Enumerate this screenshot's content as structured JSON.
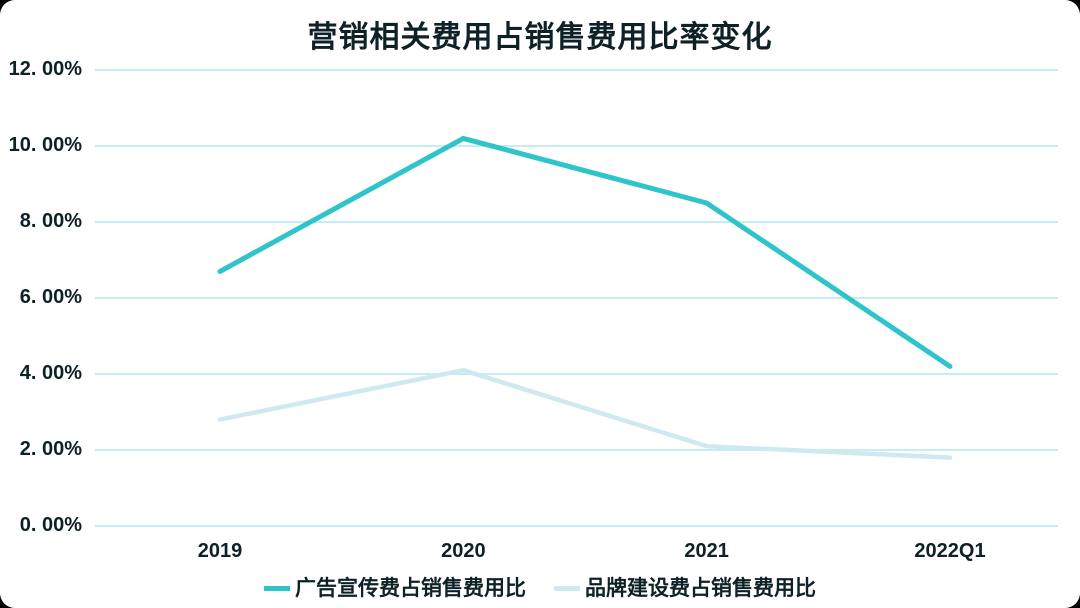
{
  "colors": {
    "background": "#ffffff",
    "outer_corners": "#000000",
    "text_dark": "#0d2127",
    "grid": "#c6edf2",
    "series_teal": "#2ec4c9",
    "series_light": "#cfe9f1"
  },
  "chart_data": {
    "type": "line",
    "title": "营销相关费用占销售费用比率变化",
    "categories": [
      "2019",
      "2020",
      "2021",
      "2022Q1"
    ],
    "series": [
      {
        "name": "广告宣传费占销售费用比",
        "color": "#2ec4c9",
        "stroke_width": 5,
        "values": [
          6.7,
          10.2,
          8.5,
          4.2
        ]
      },
      {
        "name": "品牌建设费占销售费用比",
        "color": "#cfe9f1",
        "stroke_width": 4.5,
        "values": [
          2.8,
          4.1,
          2.1,
          1.8
        ]
      }
    ],
    "xlabel": "",
    "ylabel": "",
    "ylim": [
      0,
      12
    ],
    "ytick_step": 2,
    "yticks": [
      {
        "value": 0,
        "label": "0. 00%"
      },
      {
        "value": 2,
        "label": "2. 00%"
      },
      {
        "value": 4,
        "label": "4. 00%"
      },
      {
        "value": 6,
        "label": "6. 00%"
      },
      {
        "value": 8,
        "label": "8. 00%"
      },
      {
        "value": 10,
        "label": "10. 00%"
      },
      {
        "value": 12,
        "label": "12. 00%"
      }
    ],
    "grid": true,
    "legend_position": "bottom"
  }
}
